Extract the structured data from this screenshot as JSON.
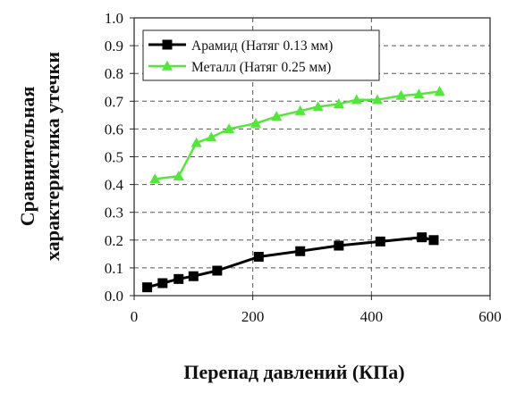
{
  "chart_data": {
    "type": "line",
    "title": "",
    "xlabel": "Перепад давлений (КПа)",
    "ylabel_line1": "Сравнительная",
    "ylabel_line2": "характеристика утечки",
    "xlim": [
      0,
      600
    ],
    "ylim": [
      0.0,
      1.0
    ],
    "xticks": [
      0,
      200,
      400,
      600
    ],
    "xtick_labels": [
      "0",
      "200",
      "400",
      "600"
    ],
    "yticks": [
      0.0,
      0.1,
      0.2,
      0.3,
      0.4,
      0.5,
      0.6,
      0.7,
      0.8,
      0.9,
      1.0
    ],
    "ytick_labels": [
      "0.0",
      "0.1",
      "0.2",
      "0.3",
      "0.4",
      "0.5",
      "0.6",
      "0.7",
      "0.8",
      "0.9",
      "1.0"
    ],
    "grid": true,
    "legend_position": "top-left",
    "series": [
      {
        "name": "Арамид (Натяг 0.13 мм)",
        "color": "#000000",
        "marker": "square",
        "points": [
          [
            22,
            0.03
          ],
          [
            48,
            0.045
          ],
          [
            75,
            0.06
          ],
          [
            100,
            0.07
          ],
          [
            140,
            0.09
          ],
          [
            210,
            0.14
          ],
          [
            280,
            0.16
          ],
          [
            345,
            0.18
          ],
          [
            415,
            0.195
          ],
          [
            485,
            0.21
          ],
          [
            505,
            0.2
          ]
        ]
      },
      {
        "name": "Металл  (Натяг 0.25 мм)",
        "color": "#55e63c",
        "marker": "triangle",
        "points": [
          [
            35,
            0.42
          ],
          [
            75,
            0.43
          ],
          [
            105,
            0.55
          ],
          [
            130,
            0.57
          ],
          [
            160,
            0.6
          ],
          [
            205,
            0.62
          ],
          [
            240,
            0.645
          ],
          [
            280,
            0.665
          ],
          [
            310,
            0.68
          ],
          [
            345,
            0.69
          ],
          [
            375,
            0.705
          ],
          [
            410,
            0.705
          ],
          [
            450,
            0.72
          ],
          [
            480,
            0.725
          ],
          [
            515,
            0.735
          ]
        ]
      }
    ]
  }
}
